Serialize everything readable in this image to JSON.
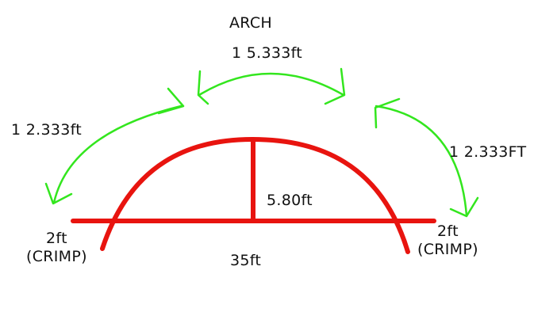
{
  "diagram": {
    "title": "ARCH",
    "top_arc_length": "1 5.333ft",
    "left_arc_length": "1 2.333ft",
    "right_arc_length": "1 2.333FT",
    "rise": "5.80ft",
    "span": "35ft",
    "left_end": {
      "length": "2ft",
      "note": "(CRIMP)"
    },
    "right_end": {
      "length": "2ft",
      "note": "(CRIMP)"
    }
  },
  "colors": {
    "structure": "#e8140f",
    "dimension_arrows": "#33e61e",
    "text": "#111111",
    "background": "#ffffff"
  }
}
